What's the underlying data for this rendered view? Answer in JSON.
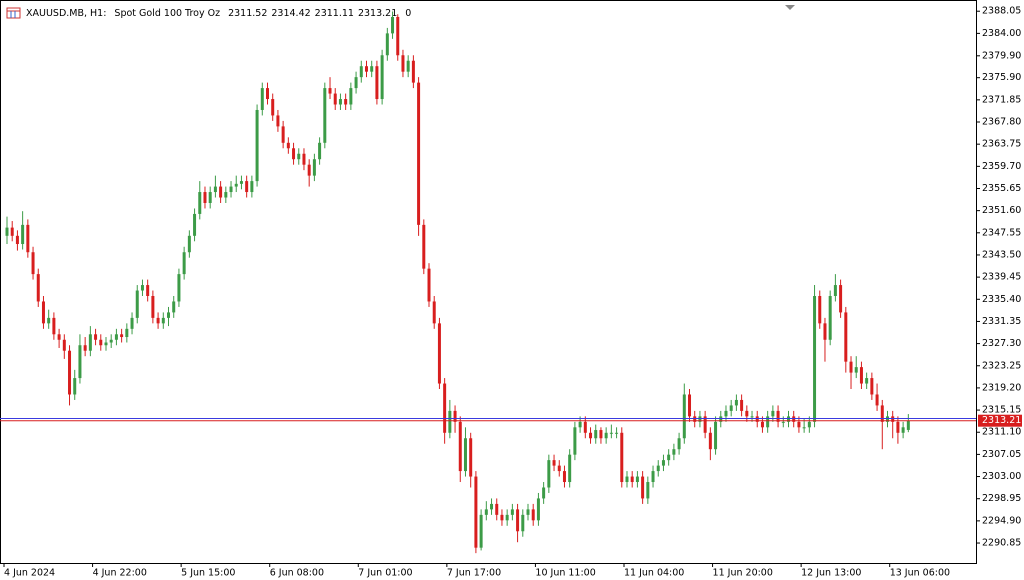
{
  "chart_data": {
    "type": "candlestick",
    "symbol": "XAUUSD.MB, H1:",
    "description": "Spot Gold 100 Troy Oz",
    "volume": 0,
    "categories": [
      "4 Jun 2024",
      null,
      null,
      null,
      null,
      null,
      null,
      null,
      null,
      null,
      null,
      null,
      null,
      null,
      null,
      null,
      null,
      "4 Jun 22:00",
      null,
      null,
      null,
      null,
      null,
      null,
      null,
      null,
      null,
      null,
      null,
      null,
      null,
      null,
      null,
      null,
      "5 Jun 15:00",
      null,
      null,
      null,
      null,
      null,
      null,
      null,
      null,
      null,
      null,
      null,
      null,
      null,
      null,
      null,
      null,
      "6 Jun 08:00",
      null,
      null,
      null,
      null,
      null,
      null,
      null,
      null,
      null,
      null,
      null,
      null,
      null,
      null,
      null,
      null,
      "7 Jun 01:00",
      null,
      null,
      null,
      null,
      null,
      null,
      null,
      null,
      null,
      null,
      null,
      null,
      null,
      null,
      null,
      null,
      "7 Jun 17:00",
      null,
      null,
      null,
      null,
      null,
      null,
      null,
      null,
      null,
      null,
      null,
      null,
      null,
      null,
      null,
      null,
      "10 Jun 11:00",
      null,
      null,
      null,
      null,
      null,
      null,
      null,
      null,
      null,
      null,
      null,
      null,
      null,
      null,
      null,
      null,
      "11 Jun 04:00",
      null,
      null,
      null,
      null,
      null,
      null,
      null,
      null,
      null,
      null,
      null,
      null,
      null,
      null,
      null,
      null,
      "11 Jun 20:00",
      null,
      null,
      null,
      null,
      null,
      null,
      null,
      null,
      null,
      null,
      null,
      null,
      null,
      null,
      null,
      null,
      "12 Jun 13:00",
      null,
      null,
      null,
      null,
      null,
      null,
      null,
      null,
      null,
      null,
      null,
      null,
      null,
      null,
      null,
      null,
      "13 Jun 06:00",
      null,
      null,
      null
    ],
    "ohlc": [
      [
        2347,
        2350.5,
        2345.5,
        2348.5
      ],
      [
        2348.5,
        2349.7,
        2346,
        2347
      ],
      [
        2347,
        2348,
        2344.3,
        2345.5
      ],
      [
        2345.5,
        2351.5,
        2344.5,
        2349
      ],
      [
        2349,
        2350,
        2343,
        2344
      ],
      [
        2344,
        2345,
        2339,
        2340
      ],
      [
        2340,
        2341,
        2334,
        2335
      ],
      [
        2335,
        2336,
        2330,
        2331
      ],
      [
        2331,
        2333.5,
        2330,
        2332
      ],
      [
        2332,
        2333,
        2328,
        2329
      ],
      [
        2329,
        2330,
        2326.5,
        2328
      ],
      [
        2328,
        2329,
        2324.5,
        2326
      ],
      [
        2326,
        2327,
        2316,
        2318
      ],
      [
        2318,
        2322.5,
        2317,
        2321
      ],
      [
        2321,
        2329,
        2320,
        2327
      ],
      [
        2327,
        2328.5,
        2325,
        2326
      ],
      [
        2326,
        2330.5,
        2325,
        2329
      ],
      [
        2329,
        2330,
        2327,
        2328
      ],
      [
        2328,
        2329,
        2326,
        2327
      ],
      [
        2327,
        2328.5,
        2326,
        2327.5
      ],
      [
        2327.5,
        2329,
        2326.5,
        2328
      ],
      [
        2328,
        2330,
        2327,
        2329
      ],
      [
        2329,
        2330,
        2327.5,
        2328.5
      ],
      [
        2328.5,
        2331,
        2327.5,
        2330
      ],
      [
        2330,
        2333,
        2329,
        2332
      ],
      [
        2332,
        2338,
        2331,
        2337
      ],
      [
        2337,
        2339,
        2336,
        2338
      ],
      [
        2338,
        2339,
        2335,
        2336
      ],
      [
        2336,
        2337,
        2331,
        2332
      ],
      [
        2332,
        2333,
        2330,
        2331
      ],
      [
        2331,
        2333,
        2330,
        2332
      ],
      [
        2332,
        2334,
        2330.5,
        2333
      ],
      [
        2333,
        2336,
        2332,
        2335
      ],
      [
        2335,
        2341,
        2334,
        2340
      ],
      [
        2340,
        2345,
        2339,
        2344
      ],
      [
        2344,
        2348,
        2343,
        2347
      ],
      [
        2347,
        2352,
        2346,
        2351
      ],
      [
        2351,
        2357,
        2350,
        2355
      ],
      [
        2355,
        2356,
        2352,
        2353
      ],
      [
        2353,
        2356,
        2352,
        2355
      ],
      [
        2355,
        2358,
        2354,
        2356
      ],
      [
        2356,
        2357,
        2353,
        2354
      ],
      [
        2354,
        2356,
        2353,
        2355
      ],
      [
        2355,
        2357,
        2354,
        2356
      ],
      [
        2356,
        2358,
        2355,
        2356.5
      ],
      [
        2356.5,
        2358,
        2355.5,
        2357
      ],
      [
        2357,
        2358,
        2354,
        2355
      ],
      [
        2355,
        2358,
        2354,
        2357
      ],
      [
        2357,
        2371,
        2356,
        2370
      ],
      [
        2370,
        2375,
        2369,
        2374
      ],
      [
        2374,
        2375,
        2371,
        2372
      ],
      [
        2372,
        2373,
        2368,
        2369
      ],
      [
        2369,
        2370,
        2366,
        2367
      ],
      [
        2367,
        2368,
        2363,
        2364
      ],
      [
        2364,
        2365,
        2362,
        2363
      ],
      [
        2363,
        2364,
        2360,
        2361
      ],
      [
        2361,
        2363,
        2360,
        2362
      ],
      [
        2362,
        2363,
        2359,
        2360
      ],
      [
        2360,
        2361,
        2356,
        2358
      ],
      [
        2358,
        2362,
        2357,
        2361
      ],
      [
        2361,
        2365,
        2360,
        2364
      ],
      [
        2364,
        2375,
        2363,
        2374
      ],
      [
        2374,
        2376,
        2372,
        2373
      ],
      [
        2373,
        2374,
        2370,
        2371
      ],
      [
        2371,
        2373,
        2370,
        2372
      ],
      [
        2372,
        2373,
        2370,
        2371
      ],
      [
        2371,
        2375,
        2370,
        2374
      ],
      [
        2374,
        2377,
        2373,
        2376
      ],
      [
        2376,
        2379,
        2375,
        2378
      ],
      [
        2378,
        2379,
        2376,
        2377
      ],
      [
        2377,
        2379,
        2376,
        2378
      ],
      [
        2378,
        2379,
        2371,
        2372
      ],
      [
        2372,
        2381,
        2371,
        2380
      ],
      [
        2380,
        2385,
        2379,
        2384
      ],
      [
        2384,
        2388,
        2383,
        2387
      ],
      [
        2387,
        2387.5,
        2379,
        2380
      ],
      [
        2380,
        2381,
        2376,
        2377
      ],
      [
        2377,
        2380,
        2376,
        2379
      ],
      [
        2379,
        2380,
        2374,
        2375
      ],
      [
        2375,
        2376,
        2347,
        2349
      ],
      [
        2349,
        2350,
        2340,
        2341
      ],
      [
        2341,
        2342,
        2334,
        2335
      ],
      [
        2335,
        2336,
        2330,
        2331
      ],
      [
        2331,
        2332,
        2319,
        2320
      ],
      [
        2320,
        2321,
        2309,
        2311
      ],
      [
        2311,
        2317,
        2310,
        2315
      ],
      [
        2315,
        2316,
        2311,
        2313
      ],
      [
        2313,
        2314,
        2302,
        2304
      ],
      [
        2304,
        2312,
        2303,
        2310
      ],
      [
        2310,
        2311,
        2301,
        2303
      ],
      [
        2303,
        2304,
        2289,
        2290
      ],
      [
        2290,
        2297,
        2289.5,
        2296
      ],
      [
        2296,
        2298.5,
        2295,
        2297
      ],
      [
        2297,
        2299,
        2296,
        2298
      ],
      [
        2298,
        2299,
        2295,
        2296
      ],
      [
        2296,
        2297,
        2294,
        2295
      ],
      [
        2295,
        2297,
        2294,
        2296
      ],
      [
        2296,
        2298,
        2295,
        2297
      ],
      [
        2297,
        2298,
        2291,
        2293
      ],
      [
        2293,
        2297,
        2292,
        2296
      ],
      [
        2296,
        2298,
        2295,
        2297
      ],
      [
        2297,
        2298,
        2294,
        2295
      ],
      [
        2295,
        2300,
        2294,
        2299
      ],
      [
        2299,
        2302,
        2298,
        2301
      ],
      [
        2301,
        2307,
        2300,
        2306
      ],
      [
        2306,
        2307,
        2304,
        2305
      ],
      [
        2305,
        2306,
        2303,
        2304
      ],
      [
        2304,
        2305,
        2301,
        2302
      ],
      [
        2302,
        2308,
        2301,
        2307
      ],
      [
        2307,
        2313,
        2306,
        2312
      ],
      [
        2312,
        2314,
        2311,
        2313
      ],
      [
        2313,
        2314,
        2310,
        2311
      ],
      [
        2311,
        2312,
        2309,
        2310
      ],
      [
        2310,
        2312.5,
        2309,
        2311.5
      ],
      [
        2311.5,
        2312,
        2309,
        2310
      ],
      [
        2310,
        2312,
        2309,
        2311
      ],
      [
        2311,
        2312.5,
        2310,
        2311
      ],
      [
        2311,
        2312,
        2310,
        2311
      ],
      [
        2311,
        2312,
        2301,
        2302
      ],
      [
        2302,
        2304,
        2301,
        2303
      ],
      [
        2303,
        2304,
        2301,
        2302
      ],
      [
        2302,
        2304,
        2301,
        2303
      ],
      [
        2303,
        2304,
        2298,
        2299
      ],
      [
        2299,
        2303,
        2298,
        2302
      ],
      [
        2302,
        2305,
        2301,
        2304
      ],
      [
        2304,
        2306,
        2303,
        2305
      ],
      [
        2305,
        2307,
        2304,
        2306
      ],
      [
        2306,
        2308,
        2305,
        2307
      ],
      [
        2307,
        2309,
        2306,
        2308
      ],
      [
        2308,
        2311,
        2307,
        2310
      ],
      [
        2310,
        2320,
        2309,
        2318
      ],
      [
        2318,
        2319,
        2313,
        2314
      ],
      [
        2314,
        2315,
        2312,
        2313
      ],
      [
        2313,
        2315,
        2312,
        2314
      ],
      [
        2314,
        2315,
        2310,
        2311
      ],
      [
        2311,
        2312,
        2306,
        2308
      ],
      [
        2308,
        2314,
        2307,
        2313
      ],
      [
        2313,
        2315,
        2312,
        2314
      ],
      [
        2314,
        2316,
        2313,
        2315
      ],
      [
        2315,
        2317,
        2314,
        2316
      ],
      [
        2316,
        2318,
        2315,
        2317
      ],
      [
        2317,
        2318,
        2314,
        2315
      ],
      [
        2315,
        2316,
        2313,
        2314
      ],
      [
        2314,
        2315,
        2313,
        2314
      ],
      [
        2314,
        2315,
        2312,
        2313
      ],
      [
        2313,
        2314,
        2311,
        2312
      ],
      [
        2312,
        2315,
        2311,
        2314
      ],
      [
        2314,
        2316,
        2313,
        2315
      ],
      [
        2315,
        2316,
        2312,
        2313
      ],
      [
        2313,
        2314,
        2312,
        2313
      ],
      [
        2313,
        2315,
        2312,
        2314
      ],
      [
        2314,
        2315,
        2312,
        2313
      ],
      [
        2313,
        2314,
        2311,
        2312
      ],
      [
        2312,
        2313.5,
        2311,
        2312
      ],
      [
        2312,
        2314,
        2311,
        2313
      ],
      [
        2313,
        2338,
        2312,
        2336
      ],
      [
        2336,
        2337,
        2330,
        2331
      ],
      [
        2331,
        2332,
        2324,
        2328
      ],
      [
        2328,
        2337,
        2327,
        2336
      ],
      [
        2336,
        2340,
        2335,
        2338
      ],
      [
        2338,
        2339,
        2332,
        2333
      ],
      [
        2333,
        2334,
        2322,
        2324
      ],
      [
        2324,
        2325,
        2319,
        2322
      ],
      [
        2322,
        2325,
        2321,
        2323
      ],
      [
        2323,
        2324,
        2319,
        2320
      ],
      [
        2320,
        2322,
        2319,
        2321
      ],
      [
        2321,
        2322,
        2317,
        2318
      ],
      [
        2318,
        2320,
        2315,
        2316
      ],
      [
        2316,
        2317,
        2308,
        2313
      ],
      [
        2313,
        2315,
        2312,
        2314
      ],
      [
        2314,
        2315,
        2310,
        2313
      ],
      [
        2313,
        2314,
        2309,
        2311
      ],
      [
        2311,
        2313,
        2310,
        2312
      ],
      [
        2311.52,
        2314.42,
        2311.11,
        2313.21
      ]
    ],
    "up_color": "#3c9b47",
    "down_color": "#d81e1e",
    "price_line_color": "#d81e1e",
    "ask_line": 2313.6,
    "ask_line_color": "#3a3adf",
    "ylim": [
      2287.2,
      2390.1
    ],
    "yticks": [
      {
        "value": 2388.05,
        "label": "2388.05"
      },
      {
        "value": 2384,
        "label": "2384.00"
      },
      {
        "value": 2379.9,
        "label": "2379.90"
      },
      {
        "value": 2375.9,
        "label": "2375.90"
      },
      {
        "value": 2371.85,
        "label": "2371.85"
      },
      {
        "value": 2367.8,
        "label": "2367.80"
      },
      {
        "value": 2363.75,
        "label": "2363.75"
      },
      {
        "value": 2359.7,
        "label": "2359.70"
      },
      {
        "value": 2355.65,
        "label": "2355.65"
      },
      {
        "value": 2351.6,
        "label": "2351.60"
      },
      {
        "value": 2347.55,
        "label": "2347.55"
      },
      {
        "value": 2343.5,
        "label": "2343.50"
      },
      {
        "value": 2339.45,
        "label": "2339.45"
      },
      {
        "value": 2335.4,
        "label": "2335.40"
      },
      {
        "value": 2331.35,
        "label": "2331.35"
      },
      {
        "value": 2327.3,
        "label": "2327.30"
      },
      {
        "value": 2323.25,
        "label": "2323.25"
      },
      {
        "value": 2319.2,
        "label": "2319.20"
      },
      {
        "value": 2315.15,
        "label": "2315.15"
      },
      {
        "value": 2311.1,
        "label": "2311.10"
      },
      {
        "value": 2307.05,
        "label": "2307.05"
      },
      {
        "value": 2303,
        "label": "2303.00"
      },
      {
        "value": 2298.95,
        "label": "2298.95"
      },
      {
        "value": 2294.9,
        "label": "2294.90"
      },
      {
        "value": 2290.85,
        "label": "2290.85"
      }
    ],
    "grid": false
  }
}
